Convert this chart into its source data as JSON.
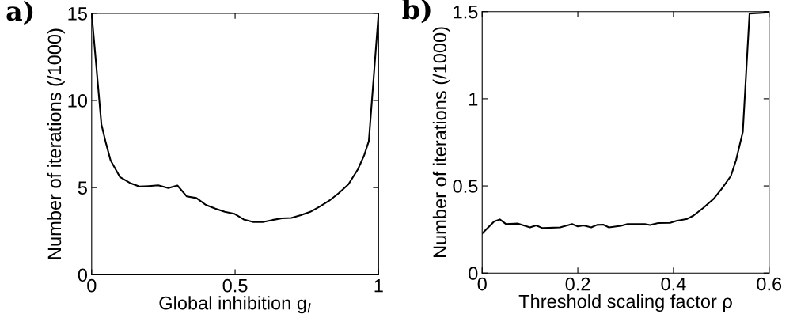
{
  "chart_data": [
    {
      "type": "line",
      "title": "a)",
      "xlabel": "Global inhibition g$_{I}$",
      "ylabel": "Number of iterations (/1000)",
      "xlim": [
        0,
        1
      ],
      "xticks": [
        0,
        0.5,
        1
      ],
      "ylim": [
        0,
        15
      ],
      "yticks": [
        0,
        5,
        10,
        15
      ],
      "grid": false,
      "legend": false,
      "x": [
        0,
        0.034,
        0.049,
        0.066,
        0.099,
        0.133,
        0.166,
        0.199,
        0.232,
        0.267,
        0.299,
        0.331,
        0.365,
        0.398,
        0.431,
        0.464,
        0.497,
        0.53,
        0.564,
        0.596,
        0.63,
        0.663,
        0.696,
        0.729,
        0.762,
        0.795,
        0.829,
        0.861,
        0.895,
        0.928,
        0.95,
        0.966,
        1
      ],
      "series": [
        {
          "color": "#000000",
          "values": [
            15,
            8.63,
            7.6,
            6.56,
            5.6,
            5.27,
            5.06,
            5.09,
            5.13,
            4.97,
            5.12,
            4.5,
            4.4,
            4.01,
            3.79,
            3.61,
            3.5,
            3.17,
            3.02,
            3.02,
            3.14,
            3.24,
            3.26,
            3.42,
            3.61,
            3.91,
            4.26,
            4.68,
            5.19,
            6.05,
            6.86,
            7.67,
            15
          ]
        }
      ]
    },
    {
      "type": "line",
      "title": "b)",
      "xlabel": "Threshold scaling factor ρ",
      "ylabel": "Number of iterations (/1000)",
      "xlim": [
        0,
        0.6
      ],
      "xticks": [
        0,
        0.2,
        0.4,
        0.6
      ],
      "ylim": [
        0,
        1.5
      ],
      "yticks": [
        0,
        0.5,
        1,
        1.5
      ],
      "grid": false,
      "legend": false,
      "x": [
        0,
        0.025,
        0.037,
        0.05,
        0.075,
        0.1,
        0.113,
        0.126,
        0.163,
        0.188,
        0.2,
        0.212,
        0.228,
        0.24,
        0.253,
        0.265,
        0.29,
        0.304,
        0.34,
        0.351,
        0.368,
        0.393,
        0.406,
        0.429,
        0.442,
        0.462,
        0.484,
        0.5,
        0.52,
        0.531,
        0.545,
        0.559,
        0.6
      ],
      "series": [
        {
          "color": "#000000",
          "values": [
            0.227,
            0.296,
            0.308,
            0.281,
            0.284,
            0.262,
            0.273,
            0.258,
            0.262,
            0.281,
            0.268,
            0.273,
            0.262,
            0.276,
            0.278,
            0.262,
            0.271,
            0.281,
            0.281,
            0.276,
            0.287,
            0.288,
            0.299,
            0.311,
            0.33,
            0.373,
            0.426,
            0.48,
            0.557,
            0.649,
            0.81,
            1.489,
            1.495
          ]
        }
      ]
    }
  ]
}
